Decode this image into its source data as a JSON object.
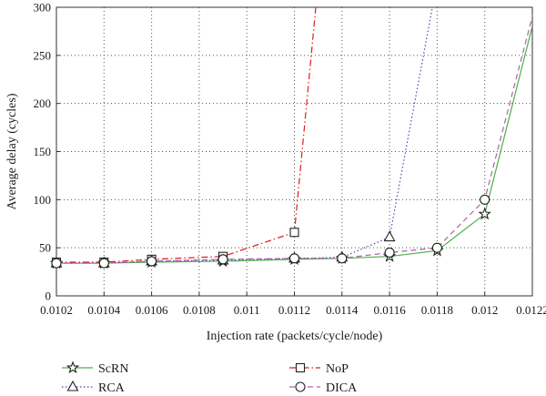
{
  "chart_data": {
    "type": "line",
    "xlabel": "Injection rate (packets/cycle/node)",
    "ylabel": "Average delay (cycles)",
    "xlim": [
      0.0102,
      0.0122
    ],
    "ylim": [
      0,
      300
    ],
    "x_ticks": [
      "0.0102",
      "0.0104",
      "0.0106",
      "0.0108",
      "0.011",
      "0.0112",
      "0.0114",
      "0.0116",
      "0.0118",
      "0.012",
      "0.0122"
    ],
    "y_ticks": [
      "0",
      "50",
      "100",
      "150",
      "200",
      "250",
      "300"
    ],
    "grid": true,
    "legend_position": "bottom",
    "series": [
      {
        "name": "ScRN",
        "color": "#4daf4a",
        "marker": "star",
        "dash": "solid",
        "x": [
          0.0102,
          0.0104,
          0.0106,
          0.0109,
          0.0112,
          0.0114,
          0.0116,
          0.0118,
          0.012,
          0.01222
        ],
        "y": [
          34,
          34,
          35,
          36,
          38,
          39,
          41,
          47,
          85,
          300
        ]
      },
      {
        "name": "NoP",
        "color": "#e41a1c",
        "marker": "square",
        "dash": "dashdot",
        "x": [
          0.0102,
          0.0104,
          0.0106,
          0.0109,
          0.0112,
          0.01129
        ],
        "y": [
          35,
          35,
          38,
          41,
          66,
          300
        ]
      },
      {
        "name": "RCA",
        "color": "#4a4ab5",
        "marker": "triangle",
        "dash": "dotted",
        "x": [
          0.0102,
          0.0104,
          0.0106,
          0.0109,
          0.0112,
          0.0114,
          0.0116,
          0.01178
        ],
        "y": [
          34,
          34,
          36,
          37,
          39,
          40,
          61,
          300
        ]
      },
      {
        "name": "DICA",
        "color": "#b15fa6",
        "marker": "circle",
        "dash": "dashed",
        "x": [
          0.0102,
          0.0104,
          0.0106,
          0.0109,
          0.0112,
          0.0114,
          0.0116,
          0.0118,
          0.012,
          0.01221
        ],
        "y": [
          34,
          34,
          36,
          38,
          39,
          39,
          45,
          50,
          100,
          300
        ]
      }
    ]
  }
}
